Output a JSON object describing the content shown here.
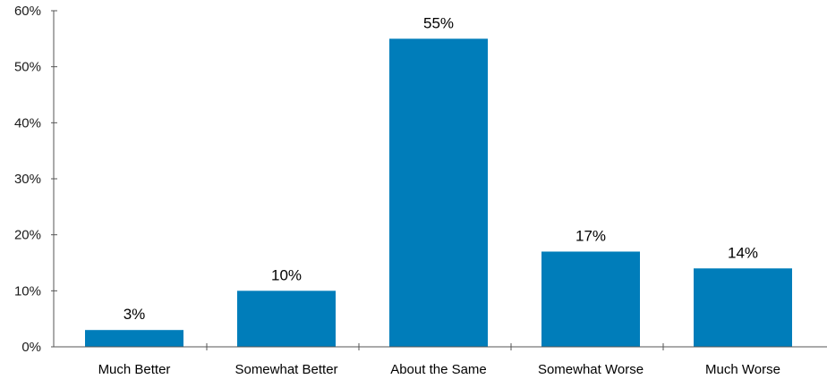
{
  "chart_data": {
    "type": "bar",
    "title": "",
    "xlabel": "",
    "ylabel": "",
    "categories": [
      "Much Better",
      "Somewhat Better",
      "About the Same",
      "Somewhat Worse",
      "Much Worse"
    ],
    "values": [
      3,
      10,
      55,
      17,
      14
    ],
    "value_labels": [
      "3%",
      "10%",
      "55%",
      "17%",
      "14%"
    ],
    "ylim": [
      0,
      60
    ],
    "yticks": [
      0,
      10,
      20,
      30,
      40,
      50,
      60
    ],
    "ytick_labels": [
      "0%",
      "10%",
      "20%",
      "30%",
      "40%",
      "50%",
      "60%"
    ],
    "grid": false,
    "legend": "none",
    "bar_color": "#007dba",
    "axis_color": "#555555"
  }
}
